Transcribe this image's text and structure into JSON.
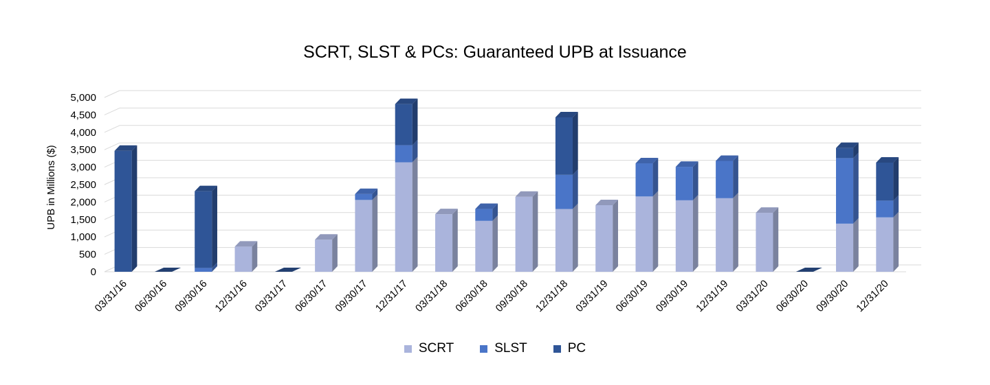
{
  "chart_data": {
    "type": "bar",
    "stacked": true,
    "three_d": true,
    "title": "SCRT, SLST & PCs: Guaranteed UPB at Issuance",
    "xlabel": "",
    "ylabel": "UPB in Millions ($)",
    "ylim": [
      0,
      5000
    ],
    "yticks": [
      "0",
      "500",
      "1,000",
      "1,500",
      "2,000",
      "2,500",
      "3,000",
      "3,500",
      "4,000",
      "4,500",
      "5,000"
    ],
    "grid": true,
    "legend_position": "bottom",
    "categories": [
      "03/31/16",
      "06/30/16",
      "09/30/16",
      "12/31/16",
      "03/31/17",
      "06/30/17",
      "09/30/17",
      "12/31/17",
      "03/31/18",
      "06/30/18",
      "09/30/18",
      "12/31/18",
      "03/31/19",
      "06/30/19",
      "09/30/19",
      "12/31/19",
      "03/31/20",
      "06/30/20",
      "09/30/20",
      "12/31/20"
    ],
    "series": [
      {
        "name": "SCRT",
        "color": "#aab4dc",
        "values": [
          0,
          0,
          0,
          720,
          0,
          920,
          2060,
          3140,
          1650,
          1460,
          2150,
          1800,
          1910,
          2160,
          2050,
          2110,
          1690,
          0,
          1380,
          1560
        ]
      },
      {
        "name": "SLST",
        "color": "#4a75c8",
        "values": [
          0,
          0,
          110,
          0,
          0,
          0,
          170,
          490,
          0,
          340,
          0,
          980,
          0,
          950,
          960,
          1070,
          0,
          0,
          1880,
          480
        ]
      },
      {
        "name": "PC",
        "color": "#2f5597",
        "values": [
          3470,
          0,
          2200,
          0,
          0,
          0,
          0,
          1180,
          0,
          0,
          0,
          1650,
          0,
          0,
          0,
          0,
          0,
          0,
          290,
          1090
        ]
      }
    ]
  }
}
